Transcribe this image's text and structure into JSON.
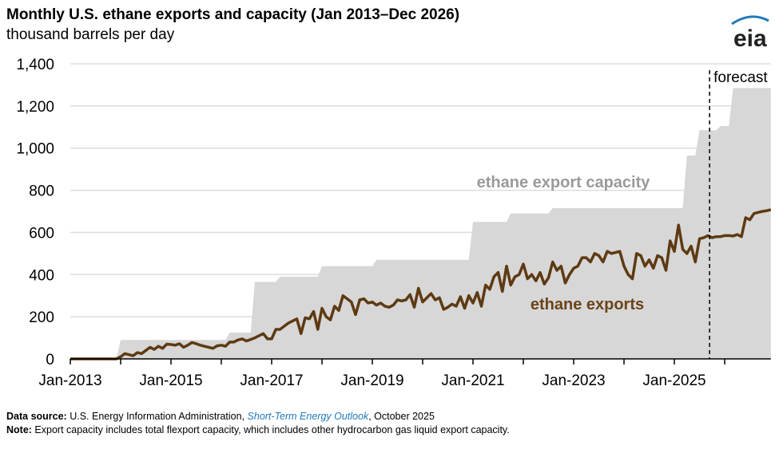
{
  "title": "Monthly U.S. ethane exports and capacity (Jan 2013–Dec 2026)",
  "subtitle": "thousand barrels per day",
  "logo_text": "eia",
  "source": {
    "label": "Data source:",
    "pre": " U.S. Energy Information Administration, ",
    "link": "Short-Term Energy Outlook",
    "post": ", October 2025"
  },
  "note": {
    "label": "Note:",
    "text": " Export capacity includes total flexport capacity, which includes other hydrocarbon gas liquid export capacity."
  },
  "chart_data": {
    "type": "area",
    "start": "2013-01",
    "end": "2026-12",
    "ylim": [
      0,
      1400
    ],
    "yticks": [
      0,
      200,
      400,
      600,
      800,
      1000,
      1200,
      1400
    ],
    "ytick_labels": [
      "0",
      "200",
      "400",
      "600",
      "800",
      "1,000",
      "1,200",
      "1,400"
    ],
    "xtick_labels": [
      "Jan-2013",
      "Jan-2015",
      "Jan-2017",
      "Jan-2019",
      "Jan-2021",
      "Jan-2023",
      "Jan-2025"
    ],
    "grid": true,
    "forecast_start": "2025-10",
    "forecast_label": "forecast",
    "colors": {
      "capacity": "#d7d7d7",
      "exports": "#5e3a12",
      "capacity_label": "#9a9a9a",
      "exports_label": "#6b4419",
      "grid": "#dddddd"
    },
    "series": [
      {
        "name": "ethane export capacity",
        "type": "area",
        "monthly_by_year": {
          "2013": [
            0,
            0,
            0,
            0,
            0,
            0,
            0,
            0,
            0,
            0,
            0,
            0
          ],
          "2014": [
            90,
            90,
            90,
            90,
            90,
            90,
            90,
            90,
            90,
            90,
            90,
            90
          ],
          "2015": [
            90,
            90,
            90,
            90,
            90,
            90,
            90,
            90,
            90,
            90,
            90,
            90
          ],
          "2016": [
            90,
            90,
            125,
            125,
            125,
            125,
            125,
            125,
            365,
            365,
            365,
            365
          ],
          "2017": [
            365,
            365,
            390,
            390,
            390,
            390,
            390,
            390,
            390,
            390,
            390,
            390
          ],
          "2018": [
            440,
            440,
            440,
            440,
            440,
            440,
            440,
            440,
            440,
            440,
            440,
            440
          ],
          "2019": [
            440,
            470,
            470,
            470,
            470,
            470,
            470,
            470,
            470,
            470,
            470,
            470
          ],
          "2020": [
            470,
            470,
            470,
            470,
            470,
            470,
            470,
            470,
            470,
            470,
            470,
            470
          ],
          "2021": [
            650,
            650,
            650,
            650,
            650,
            650,
            650,
            650,
            650,
            690,
            690,
            690
          ],
          "2022": [
            690,
            690,
            690,
            690,
            690,
            690,
            690,
            715,
            715,
            715,
            715,
            715
          ],
          "2023": [
            715,
            715,
            715,
            715,
            715,
            715,
            715,
            715,
            715,
            715,
            715,
            715
          ],
          "2024": [
            715,
            715,
            715,
            715,
            715,
            715,
            715,
            715,
            715,
            715,
            715,
            715
          ],
          "2025": [
            715,
            715,
            715,
            965,
            965,
            965,
            1085,
            1085,
            1085,
            1085,
            1085,
            1105
          ],
          "2026": [
            1105,
            1105,
            1285,
            1285,
            1285,
            1285,
            1285,
            1285,
            1285,
            1285,
            1285,
            1285
          ]
        }
      },
      {
        "name": "ethane exports",
        "type": "line",
        "monthly_by_year": {
          "2013": [
            0,
            0,
            0,
            0,
            0,
            0,
            0,
            0,
            0,
            0,
            0,
            0
          ],
          "2014": [
            10,
            25,
            20,
            15,
            30,
            25,
            40,
            55,
            45,
            60,
            50,
            70
          ],
          "2015": [
            68,
            65,
            72,
            55,
            65,
            78,
            72,
            65,
            60,
            55,
            50,
            62
          ],
          "2016": [
            65,
            60,
            80,
            80,
            90,
            95,
            85,
            92,
            100,
            110,
            120,
            95
          ],
          "2017": [
            95,
            140,
            140,
            155,
            170,
            180,
            190,
            120,
            195,
            190,
            225,
            140
          ],
          "2018": [
            240,
            200,
            185,
            250,
            230,
            300,
            285,
            270,
            210,
            280,
            285,
            265
          ],
          "2019": [
            270,
            255,
            265,
            250,
            245,
            255,
            280,
            275,
            280,
            305,
            245,
            335
          ],
          "2020": [
            270,
            290,
            310,
            280,
            290,
            235,
            245,
            260,
            250,
            295,
            240,
            300
          ],
          "2021": [
            265,
            315,
            250,
            350,
            330,
            390,
            410,
            320,
            440,
            350,
            390,
            400
          ],
          "2022": [
            450,
            380,
            400,
            370,
            410,
            355,
            385,
            460,
            420,
            440,
            360,
            400
          ],
          "2023": [
            430,
            440,
            480,
            480,
            460,
            500,
            490,
            460,
            510,
            500,
            505,
            510
          ],
          "2024": [
            440,
            400,
            380,
            500,
            490,
            440,
            470,
            430,
            490,
            480,
            420,
            560
          ],
          "2025": [
            510,
            635,
            520,
            500,
            535,
            460,
            570,
            575,
            585,
            575,
            580,
            580
          ],
          "2026": [
            585,
            585,
            583,
            590,
            580,
            670,
            660,
            690,
            695,
            700,
            703,
            708
          ]
        }
      }
    ]
  }
}
